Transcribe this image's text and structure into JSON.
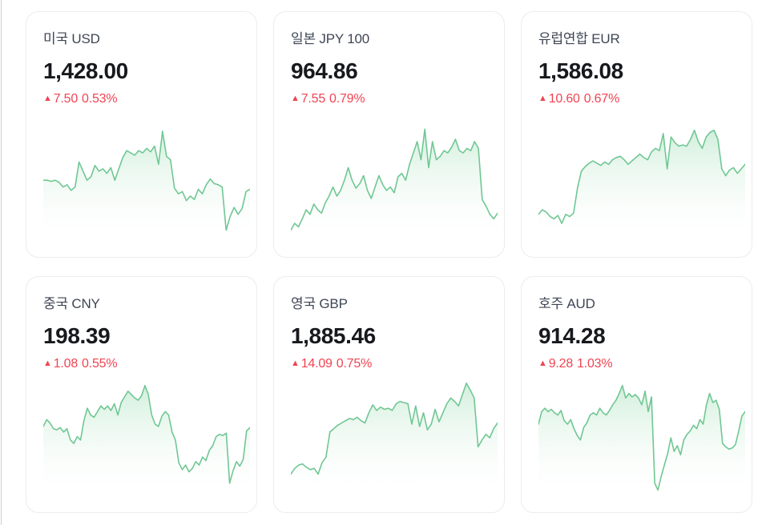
{
  "colors": {
    "up_red": "#f04452",
    "line_green": "#70c794",
    "fill_green_top": "#cfeeda",
    "fill_green_bottom": "#ffffff",
    "card_border": "#ececec",
    "title_text": "#3e4654",
    "price_text": "#17191d",
    "card_bg": "#ffffff"
  },
  "chart_data": [
    {
      "type": "area",
      "title": "미국 USD",
      "price": "1,428.00",
      "change_arrow": "▲",
      "change_value": "7.50",
      "change_percent": "0.53%",
      "trend": "up",
      "ylim": [
        0,
        1
      ],
      "values_norm": [
        0.52,
        0.52,
        0.51,
        0.52,
        0.5,
        0.46,
        0.48,
        0.43,
        0.46,
        0.68,
        0.6,
        0.52,
        0.55,
        0.65,
        0.6,
        0.62,
        0.58,
        0.63,
        0.52,
        0.62,
        0.72,
        0.78,
        0.76,
        0.74,
        0.78,
        0.76,
        0.8,
        0.77,
        0.82,
        0.66,
        0.95,
        0.73,
        0.7,
        0.45,
        0.4,
        0.42,
        0.34,
        0.38,
        0.35,
        0.44,
        0.4,
        0.48,
        0.53,
        0.49,
        0.48,
        0.46,
        0.08,
        0.2,
        0.28,
        0.22,
        0.27,
        0.42,
        0.44
      ]
    },
    {
      "type": "area",
      "title": "일본 JPY 100",
      "price": "964.86",
      "change_arrow": "▲",
      "change_value": "7.55",
      "change_percent": "0.79%",
      "trend": "up",
      "ylim": [
        0,
        1
      ],
      "values_norm": [
        0.08,
        0.14,
        0.11,
        0.18,
        0.26,
        0.22,
        0.31,
        0.26,
        0.23,
        0.32,
        0.38,
        0.46,
        0.38,
        0.43,
        0.52,
        0.63,
        0.52,
        0.45,
        0.49,
        0.56,
        0.43,
        0.36,
        0.46,
        0.56,
        0.48,
        0.43,
        0.46,
        0.41,
        0.55,
        0.58,
        0.52,
        0.66,
        0.76,
        0.86,
        0.7,
        0.97,
        0.63,
        0.86,
        0.7,
        0.73,
        0.78,
        0.76,
        0.81,
        0.88,
        0.78,
        0.76,
        0.8,
        0.78,
        0.86,
        0.8,
        0.35,
        0.29,
        0.22,
        0.18,
        0.23
      ]
    },
    {
      "type": "area",
      "title": "유럽연합 EUR",
      "price": "1,586.08",
      "change_arrow": "▲",
      "change_value": "10.60",
      "change_percent": "0.67%",
      "trend": "up",
      "ylim": [
        0,
        1
      ],
      "values_norm": [
        0.22,
        0.26,
        0.24,
        0.2,
        0.18,
        0.21,
        0.14,
        0.22,
        0.2,
        0.23,
        0.45,
        0.6,
        0.64,
        0.67,
        0.69,
        0.67,
        0.65,
        0.68,
        0.66,
        0.7,
        0.72,
        0.73,
        0.7,
        0.66,
        0.69,
        0.72,
        0.75,
        0.72,
        0.7,
        0.77,
        0.8,
        0.78,
        0.93,
        0.62,
        0.9,
        0.85,
        0.82,
        0.83,
        0.82,
        0.88,
        0.96,
        0.86,
        0.8,
        0.9,
        0.94,
        0.96,
        0.88,
        0.62,
        0.56,
        0.61,
        0.63,
        0.58,
        0.62,
        0.66
      ]
    },
    {
      "type": "area",
      "title": "중국 CNY",
      "price": "198.39",
      "change_arrow": "▲",
      "change_value": "1.08",
      "change_percent": "0.55%",
      "trend": "up",
      "ylim": [
        0,
        1
      ],
      "values_norm": [
        0.6,
        0.66,
        0.63,
        0.58,
        0.57,
        0.59,
        0.55,
        0.58,
        0.48,
        0.45,
        0.51,
        0.48,
        0.65,
        0.76,
        0.7,
        0.68,
        0.73,
        0.78,
        0.75,
        0.78,
        0.74,
        0.8,
        0.7,
        0.81,
        0.86,
        0.91,
        0.88,
        0.85,
        0.83,
        0.87,
        0.96,
        0.88,
        0.7,
        0.62,
        0.6,
        0.69,
        0.73,
        0.7,
        0.55,
        0.48,
        0.28,
        0.22,
        0.26,
        0.2,
        0.23,
        0.29,
        0.26,
        0.33,
        0.3,
        0.39,
        0.43,
        0.51,
        0.53,
        0.52,
        0.54,
        0.1,
        0.21,
        0.29,
        0.25,
        0.31,
        0.56,
        0.59
      ]
    },
    {
      "type": "area",
      "title": "영국 GBP",
      "price": "1,885.46",
      "change_arrow": "▲",
      "change_value": "14.09",
      "change_percent": "0.75%",
      "trend": "up",
      "ylim": [
        0,
        1
      ],
      "values_norm": [
        0.18,
        0.23,
        0.26,
        0.27,
        0.24,
        0.22,
        0.23,
        0.18,
        0.28,
        0.33,
        0.55,
        0.58,
        0.61,
        0.63,
        0.65,
        0.67,
        0.66,
        0.68,
        0.65,
        0.63,
        0.72,
        0.79,
        0.74,
        0.77,
        0.75,
        0.76,
        0.74,
        0.8,
        0.82,
        0.81,
        0.8,
        0.62,
        0.78,
        0.6,
        0.72,
        0.57,
        0.62,
        0.75,
        0.64,
        0.72,
        0.8,
        0.85,
        0.82,
        0.78,
        0.88,
        0.98,
        0.92,
        0.85,
        0.42,
        0.48,
        0.53,
        0.5,
        0.58,
        0.63
      ]
    },
    {
      "type": "area",
      "title": "호주 AUD",
      "price": "914.28",
      "change_arrow": "▲",
      "change_value": "9.28",
      "change_percent": "1.03%",
      "trend": "up",
      "ylim": [
        0,
        1
      ],
      "values_norm": [
        0.62,
        0.73,
        0.76,
        0.73,
        0.75,
        0.72,
        0.7,
        0.74,
        0.65,
        0.62,
        0.66,
        0.58,
        0.52,
        0.48,
        0.59,
        0.63,
        0.7,
        0.72,
        0.7,
        0.76,
        0.72,
        0.7,
        0.74,
        0.79,
        0.83,
        0.89,
        0.96,
        0.85,
        0.89,
        0.86,
        0.88,
        0.85,
        0.79,
        0.91,
        0.73,
        0.86,
        0.1,
        0.04,
        0.16,
        0.26,
        0.36,
        0.5,
        0.38,
        0.43,
        0.35,
        0.48,
        0.53,
        0.56,
        0.61,
        0.58,
        0.66,
        0.62,
        0.79,
        0.89,
        0.81,
        0.83,
        0.75,
        0.45,
        0.42,
        0.4,
        0.41,
        0.44,
        0.56,
        0.69,
        0.73
      ]
    }
  ]
}
